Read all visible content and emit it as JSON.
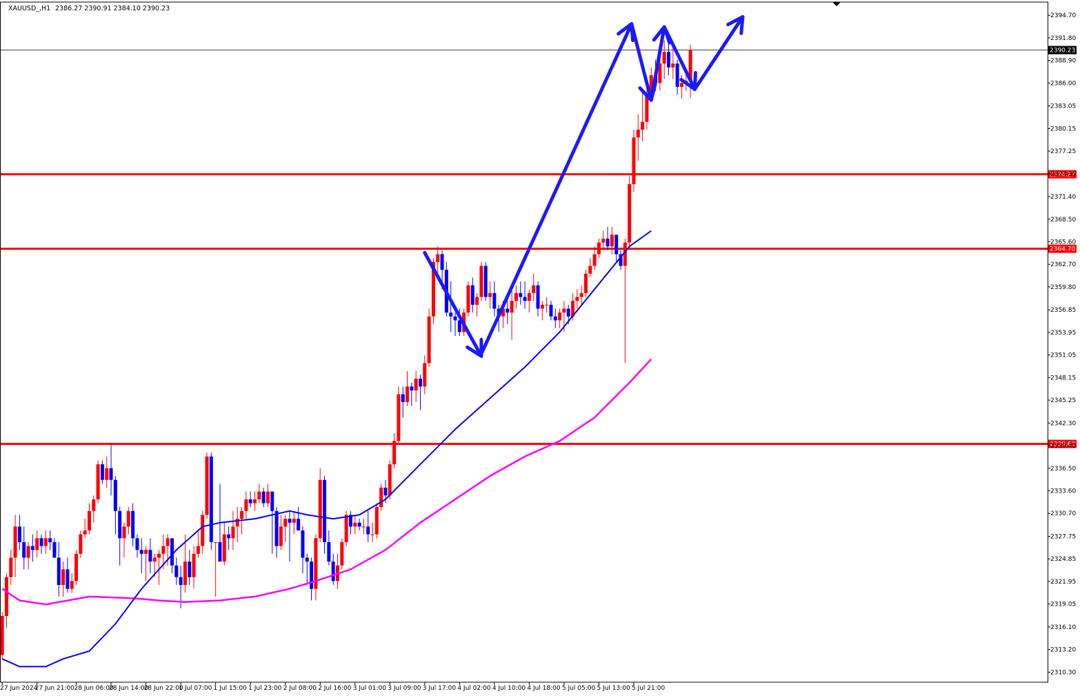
{
  "header": {
    "symbol": "XAUUSD_,H1",
    "ohlc": "2386.27 2390.91 2384.10 2390.23"
  },
  "colors": {
    "bull": "#ff0000",
    "bear": "#0000ff",
    "ma_fast": "#0000ff",
    "ma_slow": "#ff00ff",
    "level": "#ff0000",
    "arrow": "#1a1aff",
    "current": "#000000"
  },
  "chart_data": {
    "type": "candlestick",
    "title": "XAUUSD_,H1",
    "ylim": [
      2309.0,
      2396.4
    ],
    "xlim": [
      -0.5,
      240
    ],
    "price_ticks": [
      "2394.70",
      "2391.80",
      "2388.90",
      "2386.00",
      "2383.05",
      "2380.15",
      "2377.25",
      "2374.35",
      "2371.40",
      "2368.50",
      "2365.60",
      "2362.70",
      "2359.80",
      "2356.85",
      "2353.95",
      "2351.05",
      "2348.15",
      "2345.25",
      "2342.30",
      "2339.40",
      "2336.50",
      "2333.60",
      "2330.70",
      "2327.75",
      "2324.85",
      "2321.95",
      "2319.05",
      "2316.10",
      "2313.20",
      "2310.30"
    ],
    "time_labels": [
      {
        "i": 0,
        "label": "27 Jun 2024"
      },
      {
        "i": 8,
        "label": "27 Jun 21:00"
      },
      {
        "i": 17,
        "label": "28 Jun 06:00"
      },
      {
        "i": 25,
        "label": "28 Jun 14:00"
      },
      {
        "i": 33,
        "label": "28 Jun 22:00"
      },
      {
        "i": 41,
        "label": "1 Jul 07:00"
      },
      {
        "i": 49,
        "label": "1 Jul 15:00"
      },
      {
        "i": 57,
        "label": "1 Jul 23:00"
      },
      {
        "i": 65,
        "label": "2 Jul 08:00"
      },
      {
        "i": 73,
        "label": "2 Jul 16:00"
      },
      {
        "i": 81,
        "label": "3 Jul 01:00"
      },
      {
        "i": 89,
        "label": "3 Jul 09:00"
      },
      {
        "i": 97,
        "label": "3 Jul 17:00"
      },
      {
        "i": 105,
        "label": "4 Jul 02:00"
      },
      {
        "i": 113,
        "label": "4 Jul 10:00"
      },
      {
        "i": 121,
        "label": "4 Jul 18:00"
      },
      {
        "i": 129,
        "label": "5 Jul 05:00"
      },
      {
        "i": 137,
        "label": "5 Jul 13:00"
      },
      {
        "i": 145,
        "label": "5 Jul 21:00"
      }
    ],
    "levels": [
      {
        "price": 2374.27,
        "label": "2374.27"
      },
      {
        "price": 2364.7,
        "label": "2364.70"
      },
      {
        "price": 2339.62,
        "label": "2339.62"
      }
    ],
    "current_price": {
      "price": 2390.23,
      "label": "2390.23"
    },
    "candles": [
      [
        2312.5,
        2318.0,
        2312.0,
        2317.5
      ],
      [
        2317.5,
        2323.0,
        2316.0,
        2322.5
      ],
      [
        2322.5,
        2326.0,
        2321.5,
        2325.0
      ],
      [
        2325.0,
        2330.5,
        2322.5,
        2329.0
      ],
      [
        2329.0,
        2330.5,
        2326.0,
        2327.0
      ],
      [
        2327.0,
        2329.0,
        2323.5,
        2325.0
      ],
      [
        2325.0,
        2327.0,
        2323.5,
        2326.5
      ],
      [
        2326.5,
        2328.0,
        2324.5,
        2326.0
      ],
      [
        2326.0,
        2328.5,
        2325.0,
        2327.5
      ],
      [
        2327.5,
        2328.0,
        2325.5,
        2326.5
      ],
      [
        2326.5,
        2328.5,
        2325.5,
        2327.5
      ],
      [
        2327.5,
        2328.5,
        2326.0,
        2327.0
      ],
      [
        2327.0,
        2327.5,
        2325.0,
        2325.0
      ],
      [
        2325.0,
        2327.0,
        2320.0,
        2321.5
      ],
      [
        2321.5,
        2324.5,
        2320.0,
        2323.5
      ],
      [
        2323.5,
        2325.0,
        2320.5,
        2321.0
      ],
      [
        2321.0,
        2323.0,
        2320.5,
        2322.0
      ],
      [
        2322.0,
        2326.0,
        2321.5,
        2325.5
      ],
      [
        2325.5,
        2328.5,
        2325.0,
        2328.0
      ],
      [
        2328.0,
        2330.0,
        2327.5,
        2328.5
      ],
      [
        2328.5,
        2332.0,
        2328.0,
        2331.0
      ],
      [
        2331.0,
        2333.0,
        2329.5,
        2332.5
      ],
      [
        2332.5,
        2337.5,
        2332.0,
        2337.0
      ],
      [
        2337.0,
        2337.5,
        2334.5,
        2335.0
      ],
      [
        2335.0,
        2338.0,
        2334.0,
        2336.5
      ],
      [
        2336.5,
        2339.5,
        2333.0,
        2335.0
      ],
      [
        2335.0,
        2335.5,
        2328.0,
        2331.0
      ],
      [
        2331.0,
        2331.5,
        2324.0,
        2327.5
      ],
      [
        2327.5,
        2329.5,
        2325.0,
        2329.0
      ],
      [
        2329.0,
        2331.5,
        2328.0,
        2331.0
      ],
      [
        2331.0,
        2332.0,
        2326.5,
        2327.5
      ],
      [
        2327.5,
        2328.0,
        2325.0,
        2326.0
      ],
      [
        2326.0,
        2327.5,
        2323.0,
        2325.5
      ],
      [
        2325.5,
        2326.5,
        2322.0,
        2326.0
      ],
      [
        2326.0,
        2327.5,
        2323.0,
        2324.5
      ],
      [
        2324.5,
        2325.5,
        2322.5,
        2325.0
      ],
      [
        2325.0,
        2326.0,
        2321.5,
        2325.5
      ],
      [
        2325.5,
        2328.0,
        2323.5,
        2326.5
      ],
      [
        2326.5,
        2328.0,
        2324.0,
        2327.5
      ],
      [
        2327.5,
        2327.5,
        2323.0,
        2324.0
      ],
      [
        2324.0,
        2325.0,
        2321.5,
        2322.5
      ],
      [
        2322.5,
        2324.0,
        2318.5,
        2321.5
      ],
      [
        2321.5,
        2328.0,
        2320.5,
        2324.5
      ],
      [
        2324.5,
        2326.0,
        2321.5,
        2322.5
      ],
      [
        2322.5,
        2326.5,
        2321.0,
        2325.5
      ],
      [
        2325.5,
        2328.5,
        2325.0,
        2326.5
      ],
      [
        2326.5,
        2331.0,
        2325.5,
        2330.5
      ],
      [
        2330.5,
        2338.5,
        2330.0,
        2338.0
      ],
      [
        2338.0,
        2338.5,
        2326.0,
        2327.0
      ],
      [
        2327.0,
        2327.0,
        2320.0,
        2327.0
      ],
      [
        2327.0,
        2334.5,
        2324.5,
        2324.5
      ],
      [
        2324.5,
        2329.5,
        2324.0,
        2328.0
      ],
      [
        2328.0,
        2329.0,
        2326.0,
        2327.5
      ],
      [
        2327.5,
        2331.0,
        2326.0,
        2329.0
      ],
      [
        2329.0,
        2331.5,
        2327.0,
        2330.0
      ],
      [
        2330.0,
        2331.5,
        2328.0,
        2331.0
      ],
      [
        2331.0,
        2333.5,
        2330.0,
        2332.5
      ],
      [
        2332.5,
        2333.5,
        2331.5,
        2332.0
      ],
      [
        2332.0,
        2333.5,
        2331.0,
        2332.5
      ],
      [
        2332.5,
        2334.5,
        2332.0,
        2333.5
      ],
      [
        2333.5,
        2334.0,
        2331.5,
        2332.0
      ],
      [
        2332.0,
        2334.5,
        2331.5,
        2333.5
      ],
      [
        2333.5,
        2333.5,
        2325.5,
        2331.0
      ],
      [
        2331.0,
        2331.5,
        2325.0,
        2326.5
      ],
      [
        2326.5,
        2330.5,
        2326.0,
        2329.0
      ],
      [
        2329.0,
        2330.5,
        2327.0,
        2330.0
      ],
      [
        2330.0,
        2331.0,
        2324.5,
        2329.5
      ],
      [
        2329.5,
        2331.0,
        2328.0,
        2330.0
      ],
      [
        2330.0,
        2331.5,
        2328.5,
        2328.5
      ],
      [
        2328.5,
        2329.0,
        2323.0,
        2325.0
      ],
      [
        2325.0,
        2325.5,
        2321.5,
        2324.5
      ],
      [
        2324.5,
        2325.0,
        2319.5,
        2321.0
      ],
      [
        2321.0,
        2328.0,
        2319.5,
        2327.5
      ],
      [
        2327.5,
        2336.5,
        2327.0,
        2335.0
      ],
      [
        2335.0,
        2335.5,
        2325.5,
        2327.0
      ],
      [
        2327.0,
        2328.5,
        2324.0,
        2324.5
      ],
      [
        2324.5,
        2325.5,
        2321.5,
        2322.0
      ],
      [
        2322.0,
        2325.5,
        2321.0,
        2324.0
      ],
      [
        2324.0,
        2327.5,
        2323.5,
        2327.0
      ],
      [
        2327.0,
        2331.0,
        2326.5,
        2330.5
      ],
      [
        2330.5,
        2331.0,
        2328.0,
        2329.0
      ],
      [
        2329.0,
        2330.5,
        2328.0,
        2329.5
      ],
      [
        2329.5,
        2330.0,
        2328.5,
        2329.0
      ],
      [
        2329.0,
        2330.0,
        2328.0,
        2329.0
      ],
      [
        2329.0,
        2331.0,
        2327.0,
        2328.0
      ],
      [
        2328.0,
        2329.5,
        2327.0,
        2328.0
      ],
      [
        2328.0,
        2332.0,
        2327.5,
        2331.5
      ],
      [
        2331.5,
        2334.5,
        2331.0,
        2334.0
      ],
      [
        2334.0,
        2335.0,
        2332.0,
        2333.0
      ],
      [
        2333.0,
        2337.5,
        2332.5,
        2337.0
      ],
      [
        2337.0,
        2341.0,
        2336.5,
        2340.0
      ],
      [
        2340.0,
        2347.0,
        2339.5,
        2346.0
      ],
      [
        2346.0,
        2347.0,
        2343.0,
        2345.0
      ],
      [
        2345.0,
        2349.0,
        2344.5,
        2347.0
      ],
      [
        2347.0,
        2347.5,
        2344.5,
        2346.5
      ],
      [
        2346.5,
        2349.0,
        2345.0,
        2348.0
      ],
      [
        2348.0,
        2348.5,
        2344.0,
        2347.0
      ],
      [
        2347.0,
        2351.0,
        2346.0,
        2350.0
      ],
      [
        2350.0,
        2357.0,
        2349.5,
        2356.0
      ],
      [
        2356.0,
        2363.5,
        2355.0,
        2363.0
      ],
      [
        2363.0,
        2365.0,
        2361.0,
        2364.0
      ],
      [
        2364.0,
        2364.5,
        2359.5,
        2362.0
      ],
      [
        2362.0,
        2363.0,
        2356.0,
        2356.5
      ],
      [
        2356.5,
        2360.5,
        2354.0,
        2356.0
      ],
      [
        2356.0,
        2356.5,
        2353.5,
        2355.5
      ],
      [
        2355.5,
        2357.0,
        2353.5,
        2354.0
      ],
      [
        2354.0,
        2357.0,
        2353.5,
        2356.5
      ],
      [
        2356.5,
        2360.5,
        2356.0,
        2360.0
      ],
      [
        2360.0,
        2361.0,
        2356.5,
        2357.5
      ],
      [
        2357.5,
        2359.0,
        2356.0,
        2358.5
      ],
      [
        2358.5,
        2363.0,
        2358.0,
        2362.5
      ],
      [
        2362.5,
        2363.0,
        2358.0,
        2358.5
      ],
      [
        2358.5,
        2360.5,
        2357.0,
        2359.0
      ],
      [
        2359.0,
        2360.5,
        2356.0,
        2357.0
      ],
      [
        2357.0,
        2357.5,
        2354.0,
        2356.0
      ],
      [
        2356.0,
        2358.0,
        2354.5,
        2357.0
      ],
      [
        2357.0,
        2358.0,
        2355.0,
        2356.5
      ],
      [
        2356.5,
        2359.5,
        2353.0,
        2358.0
      ],
      [
        2358.0,
        2360.0,
        2357.0,
        2359.0
      ],
      [
        2359.0,
        2360.5,
        2357.5,
        2358.5
      ],
      [
        2358.5,
        2360.5,
        2357.0,
        2358.0
      ],
      [
        2358.0,
        2359.5,
        2356.5,
        2359.0
      ],
      [
        2359.0,
        2361.5,
        2358.0,
        2360.0
      ],
      [
        2360.0,
        2360.5,
        2356.0,
        2357.0
      ],
      [
        2357.0,
        2358.0,
        2355.5,
        2357.5
      ],
      [
        2357.5,
        2358.5,
        2356.5,
        2357.5
      ],
      [
        2357.5,
        2358.0,
        2355.5,
        2356.0
      ],
      [
        2356.0,
        2357.0,
        2354.5,
        2355.5
      ],
      [
        2355.5,
        2357.0,
        2354.5,
        2356.5
      ],
      [
        2356.5,
        2358.0,
        2354.0,
        2357.0
      ],
      [
        2357.0,
        2357.5,
        2355.0,
        2356.0
      ],
      [
        2356.0,
        2359.0,
        2355.5,
        2358.0
      ],
      [
        2358.0,
        2359.5,
        2357.0,
        2358.5
      ],
      [
        2358.5,
        2360.0,
        2357.5,
        2359.0
      ],
      [
        2359.0,
        2362.0,
        2358.5,
        2361.5
      ],
      [
        2361.5,
        2363.5,
        2361.0,
        2362.5
      ],
      [
        2362.5,
        2365.0,
        2362.0,
        2364.0
      ],
      [
        2364.0,
        2366.0,
        2363.5,
        2365.5
      ],
      [
        2365.5,
        2367.0,
        2364.5,
        2366.0
      ],
      [
        2366.0,
        2367.5,
        2364.5,
        2365.0
      ],
      [
        2365.0,
        2367.5,
        2364.0,
        2366.5
      ],
      [
        2366.5,
        2366.5,
        2363.0,
        2364.0
      ],
      [
        2364.0,
        2364.5,
        2362.0,
        2362.5
      ],
      [
        2362.5,
        2366.0,
        2350.0,
        2365.5
      ],
      [
        2365.5,
        2374.0,
        2365.0,
        2373.0
      ],
      [
        2373.0,
        2380.0,
        2372.0,
        2379.0
      ],
      [
        2379.0,
        2382.0,
        2376.0,
        2380.0
      ],
      [
        2380.0,
        2385.0,
        2378.5,
        2381.0
      ],
      [
        2381.0,
        2386.0,
        2380.0,
        2384.5
      ],
      [
        2384.5,
        2388.0,
        2384.0,
        2387.0
      ],
      [
        2387.0,
        2389.0,
        2385.0,
        2386.0
      ],
      [
        2386.0,
        2389.5,
        2385.0,
        2388.5
      ],
      [
        2388.5,
        2391.5,
        2386.5,
        2390.0
      ],
      [
        2390.0,
        2392.0,
        2387.0,
        2388.0
      ],
      [
        2388.0,
        2391.0,
        2386.5,
        2388.5
      ],
      [
        2388.5,
        2389.0,
        2384.5,
        2385.5
      ],
      [
        2385.5,
        2387.0,
        2384.0,
        2386.0
      ],
      [
        2386.0,
        2387.5,
        2385.0,
        2386.27
      ],
      [
        2386.27,
        2390.91,
        2384.1,
        2390.23
      ]
    ],
    "ma_fast": [
      [
        0,
        2312.0
      ],
      [
        4,
        2311.0
      ],
      [
        10,
        2311.0
      ],
      [
        14,
        2312.0
      ],
      [
        20,
        2313.0
      ],
      [
        26,
        2316.5
      ],
      [
        32,
        2321.0
      ],
      [
        40,
        2326.0
      ],
      [
        46,
        2329.0
      ],
      [
        50,
        2329.5
      ],
      [
        58,
        2330.0
      ],
      [
        66,
        2331.0
      ],
      [
        70,
        2330.5
      ],
      [
        76,
        2330.0
      ],
      [
        82,
        2330.5
      ],
      [
        88,
        2332.5
      ],
      [
        96,
        2337.0
      ],
      [
        104,
        2341.5
      ],
      [
        112,
        2345.5
      ],
      [
        120,
        2349.5
      ],
      [
        128,
        2354.0
      ],
      [
        136,
        2359.5
      ],
      [
        144,
        2365.0
      ],
      [
        149,
        2367.0
      ]
    ],
    "ma_slow": [
      [
        0,
        2321.0
      ],
      [
        4,
        2319.5
      ],
      [
        10,
        2319.0
      ],
      [
        20,
        2320.0
      ],
      [
        30,
        2319.8
      ],
      [
        36,
        2319.5
      ],
      [
        42,
        2319.3
      ],
      [
        50,
        2319.5
      ],
      [
        58,
        2320.0
      ],
      [
        66,
        2321.0
      ],
      [
        72,
        2322.0
      ],
      [
        80,
        2323.5
      ],
      [
        88,
        2326.0
      ],
      [
        96,
        2329.5
      ],
      [
        104,
        2332.5
      ],
      [
        112,
        2335.5
      ],
      [
        120,
        2338.0
      ],
      [
        128,
        2340.0
      ],
      [
        136,
        2343.0
      ],
      [
        144,
        2347.5
      ],
      [
        149,
        2350.5
      ]
    ],
    "arrows": [
      {
        "from": [
          2364.2,
          97
        ],
        "to": [
          2350.9,
          110
        ]
      },
      {
        "from": [
          2351.2,
          110
        ],
        "to": [
          2393.6,
          144.5
        ]
      },
      {
        "from": [
          2393.6,
          144.5
        ],
        "to": [
          2383.8,
          149
        ]
      },
      {
        "from": [
          2383.8,
          149
        ],
        "to": [
          2393.2,
          152
        ]
      },
      {
        "from": [
          2393.2,
          152
        ],
        "to": [
          2385.2,
          159
        ]
      },
      {
        "from": [
          2385.2,
          159
        ],
        "to": [
          2394.5,
          170
        ]
      }
    ]
  }
}
